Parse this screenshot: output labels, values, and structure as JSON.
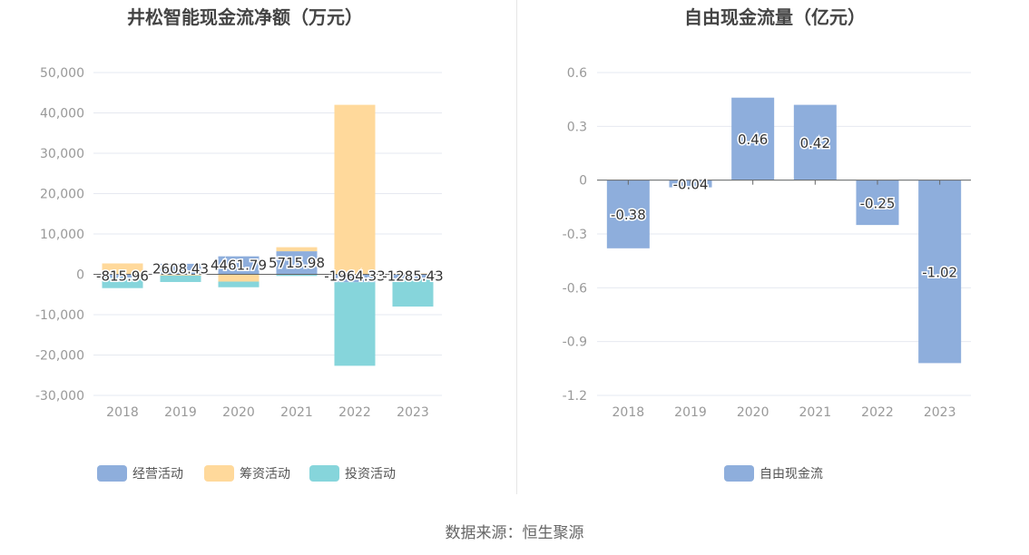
{
  "colors": {
    "operating": "#8eaedc",
    "financing": "#ffd99b",
    "investing": "#86d5db",
    "free_cash_flow": "#8eaedc",
    "grid": "#e6e9f0",
    "axis_text": "#999999",
    "title_text": "#444444"
  },
  "footer": {
    "source": "数据来源：恒生聚源"
  },
  "chart_data": [
    {
      "type": "bar",
      "stacked": true,
      "title": "井松智能现金流净额（万元）",
      "categories": [
        "2018",
        "2019",
        "2020",
        "2021",
        "2022",
        "2023"
      ],
      "ylim": [
        -30000,
        50000
      ],
      "yticks": [
        50000,
        40000,
        30000,
        20000,
        10000,
        0,
        -10000,
        -20000,
        -30000
      ],
      "ytick_labels": [
        "50,000",
        "40,000",
        "30,000",
        "20,000",
        "10,000",
        "0",
        "-10,000",
        "-20,000",
        "-30,000"
      ],
      "grid": true,
      "legend_position": "bottom",
      "series": [
        {
          "name": "经营活动",
          "color": "#8eaedc",
          "values": [
            -815.96,
            2608.43,
            4461.79,
            5715.98,
            -1964.33,
            -1285.43
          ]
        },
        {
          "name": "筹资活动",
          "color": "#ffd99b",
          "values": [
            2700,
            -300,
            -1800,
            1000,
            42000,
            200
          ]
        },
        {
          "name": "投资活动",
          "color": "#86d5db",
          "values": [
            -2600,
            -1600,
            -1400,
            -400,
            -20700,
            -6700
          ]
        }
      ],
      "data_labels": [
        "-815.96",
        "2608.43",
        "4461.79",
        "5715.98",
        "-1964.33",
        "-1285.43"
      ]
    },
    {
      "type": "bar",
      "title": "自由现金流量（亿元）",
      "categories": [
        "2018",
        "2019",
        "2020",
        "2021",
        "2022",
        "2023"
      ],
      "ylim": [
        -1.2,
        0.6
      ],
      "yticks": [
        0.6,
        0.3,
        0,
        -0.3,
        -0.6,
        -0.9,
        -1.2
      ],
      "ytick_labels": [
        "0.6",
        "0.3",
        "0",
        "-0.3",
        "-0.6",
        "-0.9",
        "-1.2"
      ],
      "grid": true,
      "legend_position": "bottom",
      "series": [
        {
          "name": "自由现金流",
          "color": "#8eaedc",
          "values": [
            -0.38,
            -0.04,
            0.46,
            0.42,
            -0.25,
            -1.02
          ]
        }
      ],
      "data_labels": [
        "-0.38",
        "-0.04",
        "0.46",
        "0.42",
        "-0.25",
        "-1.02"
      ]
    }
  ]
}
